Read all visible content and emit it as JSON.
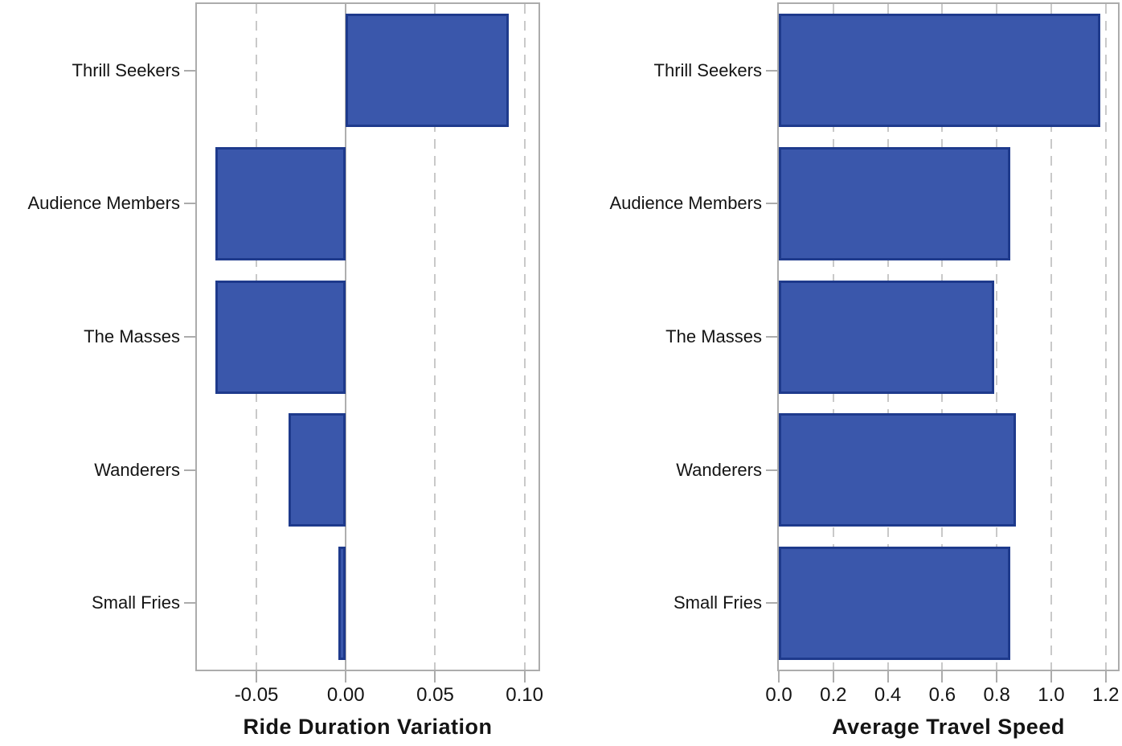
{
  "figure": {
    "description": "Two horizontal bar charts side by side, shared category axis, no titles or legends",
    "background": "#ffffff"
  },
  "colors": {
    "bar_fill": "#3A57AB",
    "bar_border": "#1E3A8C",
    "frame": "#ACACAC",
    "gridline": "#C9C9C9",
    "zero_line": "#AFAFAF",
    "text": "#141414"
  },
  "categories": [
    "Thrill Seekers",
    "Audience Members",
    "The Masses",
    "Wanderers",
    "Small Fries"
  ],
  "chart_data": [
    {
      "type": "bar",
      "orientation": "horizontal",
      "title": "",
      "xlabel": "Ride Duration Variation",
      "ylabel": "",
      "categories": [
        "Thrill Seekers",
        "Audience Members",
        "The Masses",
        "Wanderers",
        "Small Fries"
      ],
      "values": [
        0.091,
        -0.073,
        -0.073,
        -0.032,
        -0.004
      ],
      "xlim": [
        -0.0833,
        0.1078
      ],
      "xticks": [
        -0.05,
        0,
        0.05,
        0.1
      ],
      "xtick_labels": [
        "-0.05",
        "0.00",
        "0.05",
        "0.10"
      ],
      "grid": "vertical dashed gridlines at ticks, behind bars",
      "zero_line": true,
      "legend": "none"
    },
    {
      "type": "bar",
      "orientation": "horizontal",
      "title": "",
      "xlabel": "Average Travel Speed",
      "ylabel": "",
      "categories": [
        "Thrill Seekers",
        "Audience Members",
        "The Masses",
        "Wanderers",
        "Small Fries"
      ],
      "values": [
        1.18,
        0.85,
        0.79,
        0.87,
        0.85
      ],
      "xlim": [
        0,
        1.245
      ],
      "xticks": [
        0,
        0.2,
        0.4,
        0.6,
        0.8,
        1.0,
        1.2
      ],
      "xtick_labels": [
        "0.0",
        "0.2",
        "0.4",
        "0.6",
        "0.8",
        "1.0",
        "1.2"
      ],
      "grid": "vertical dashed gridlines at ticks, behind bars",
      "zero_line": false,
      "legend": "none"
    }
  ]
}
